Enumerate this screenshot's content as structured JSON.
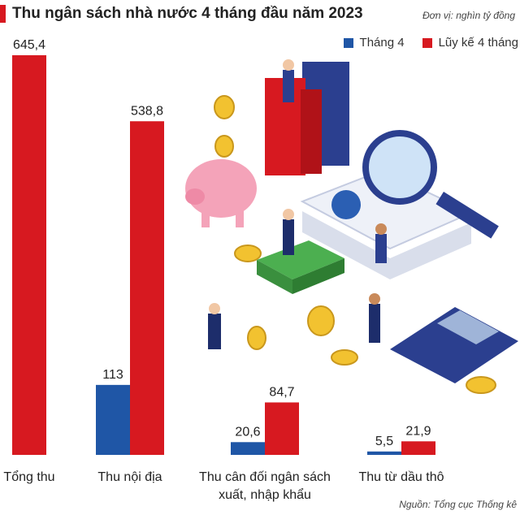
{
  "title": "Thu ngân sách nhà nước 4 tháng đầu năm 2023",
  "unit": "Đơn vị: nghìn tỷ đồng",
  "source": "Nguồn: Tổng cục Thống kê",
  "colors": {
    "accent": "#d71920",
    "thang4": "#1f56a6",
    "luyke": "#d71920"
  },
  "chart_data": {
    "type": "bar",
    "title": "Thu ngân sách nhà nước 4 tháng đầu năm 2023",
    "xlabel": "",
    "ylabel": "",
    "ylim": [
      0,
      700
    ],
    "categories": [
      "Tổng thu",
      "Thu nội địa",
      "Thu cân đối ngân sách xuất, nhập khẩu",
      "Thu từ dầu thô"
    ],
    "category_lines": [
      [
        "Tổng thu"
      ],
      [
        "Thu nội địa"
      ],
      [
        "Thu cân đối ngân sách",
        "xuất, nhập khẩu"
      ],
      [
        "Thu từ dầu thô"
      ]
    ],
    "series": [
      {
        "name": "Tháng 4",
        "color": "#1f56a6",
        "values": [
          null,
          113,
          20.6,
          5.5
        ],
        "labels": [
          "",
          "113",
          "20,6",
          "5,5"
        ]
      },
      {
        "name": "Lũy kế 4 tháng",
        "color": "#d71920",
        "values": [
          645.4,
          538.8,
          84.7,
          21.9
        ],
        "labels": [
          "645,4",
          "538,8",
          "84,7",
          "21,9"
        ]
      }
    ],
    "legend_position": "top-right",
    "grid": false
  }
}
